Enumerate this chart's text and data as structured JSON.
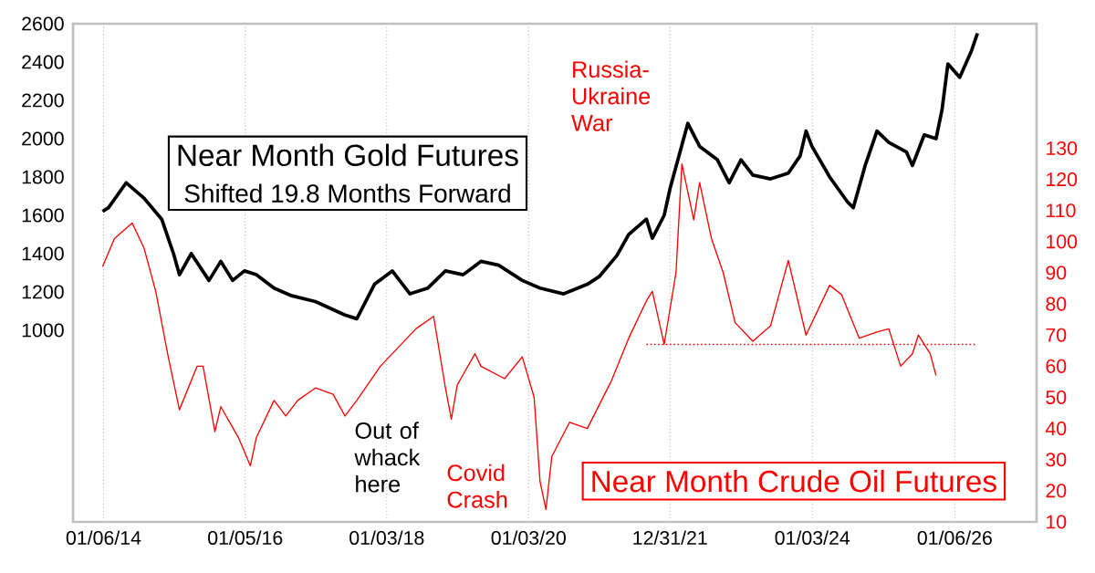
{
  "chart_data": {
    "type": "line",
    "xlim": [
      "2013-08-01",
      "2027-03-01"
    ],
    "xticks": [
      {
        "value": "2014-01-06",
        "label": "01/06/14"
      },
      {
        "value": "2016-01-05",
        "label": "01/05/16"
      },
      {
        "value": "2018-01-03",
        "label": "01/03/18"
      },
      {
        "value": "2020-01-03",
        "label": "01/03/20"
      },
      {
        "value": "2021-12-31",
        "label": "12/31/21"
      },
      {
        "value": "2024-01-03",
        "label": "01/03/24"
      },
      {
        "value": "2026-01-06",
        "label": "01/06/26"
      }
    ],
    "ylim": [
      0,
      2600
    ],
    "yticks": [
      1000,
      1200,
      1400,
      1600,
      1800,
      2000,
      2200,
      2400,
      2600
    ],
    "y2lim": [
      10,
      170
    ],
    "y2ticks": [
      10,
      20,
      30,
      40,
      50,
      60,
      70,
      80,
      90,
      100,
      110,
      120,
      130
    ],
    "grid": "x",
    "annotations": [
      "Shifted 19.8 Months Forward",
      "Russia-Ukraine War",
      "Out of whack here",
      "Covid Crash"
    ],
    "series": [
      {
        "name": "Near Month Gold Futures",
        "color": "#000000",
        "x": [
          "2014-01",
          "2014-02",
          "2014-05",
          "2014-08",
          "2014-11",
          "2015-01",
          "2015-02",
          "2015-04",
          "2015-07",
          "2015-09",
          "2015-11",
          "2016-01",
          "2016-03",
          "2016-06",
          "2016-09",
          "2017-01",
          "2017-06",
          "2017-08",
          "2017-11",
          "2018-02",
          "2018-05",
          "2018-08",
          "2018-11",
          "2019-02",
          "2019-05",
          "2019-08",
          "2019-12",
          "2020-03",
          "2020-07",
          "2020-11",
          "2021-01",
          "2021-04",
          "2021-06",
          "2021-09",
          "2021-10",
          "2021-12",
          "2022-01",
          "2022-04",
          "2022-06",
          "2022-09",
          "2022-11",
          "2023-01",
          "2023-03",
          "2023-06",
          "2023-09",
          "2023-11",
          "2023-12",
          "2024-01",
          "2024-04",
          "2024-07",
          "2024-08",
          "2024-10",
          "2024-12",
          "2025-02",
          "2025-05",
          "2025-06",
          "2025-08",
          "2025-10",
          "2025-11",
          "2025-12",
          "2026-02",
          "2026-04",
          "2026-05"
        ],
        "values": [
          1620,
          1640,
          1770,
          1690,
          1580,
          1400,
          1290,
          1400,
          1260,
          1360,
          1260,
          1310,
          1290,
          1220,
          1180,
          1150,
          1080,
          1060,
          1240,
          1310,
          1190,
          1220,
          1310,
          1290,
          1360,
          1340,
          1260,
          1220,
          1190,
          1240,
          1280,
          1390,
          1500,
          1580,
          1480,
          1600,
          1740,
          2080,
          1960,
          1890,
          1770,
          1890,
          1810,
          1790,
          1820,
          1910,
          2040,
          1960,
          1800,
          1670,
          1640,
          1860,
          2040,
          1980,
          1930,
          1860,
          2020,
          2000,
          2150,
          2390,
          2320,
          2460,
          2550
        ]
      },
      {
        "name": "Near Month Crude Oil Futures",
        "color": "#ff0000",
        "axis": "y2",
        "x": [
          "2014-01",
          "2014-03",
          "2014-06",
          "2014-08",
          "2014-10",
          "2014-12",
          "2015-02",
          "2015-05",
          "2015-06",
          "2015-08",
          "2015-09",
          "2015-12",
          "2016-02",
          "2016-03",
          "2016-06",
          "2016-08",
          "2016-10",
          "2017-01",
          "2017-04",
          "2017-06",
          "2017-08",
          "2017-12",
          "2018-03",
          "2018-06",
          "2018-09",
          "2018-11",
          "2018-12",
          "2019-01",
          "2019-04",
          "2019-05",
          "2019-09",
          "2019-12",
          "2020-02",
          "2020-03",
          "2020-04",
          "2020-05",
          "2020-08",
          "2020-11",
          "2021-03",
          "2021-06",
          "2021-09",
          "2021-10",
          "2021-12",
          "2022-02",
          "2022-03",
          "2022-05",
          "2022-06",
          "2022-08",
          "2022-10",
          "2022-11",
          "2022-12",
          "2023-03",
          "2023-06",
          "2023-09",
          "2023-12",
          "2024-04",
          "2024-06",
          "2024-09",
          "2024-12",
          "2025-02",
          "2025-04",
          "2025-06",
          "2025-07",
          "2025-09",
          "2025-10"
        ],
        "values": [
          92,
          101,
          106,
          98,
          84,
          64,
          46,
          60,
          60,
          39,
          47,
          37,
          28,
          37,
          49,
          44,
          49,
          53,
          51,
          44,
          49,
          60,
          66,
          72,
          76,
          53,
          43,
          54,
          64,
          60,
          56,
          63,
          50,
          23,
          14,
          31,
          42,
          40,
          55,
          69,
          81,
          84,
          67,
          90,
          125,
          107,
          119,
          101,
          90,
          82,
          74,
          68,
          73,
          94,
          70,
          86,
          83,
          69,
          71,
          72,
          60,
          64,
          70,
          64,
          57
        ]
      },
      {
        "color": "#ff0000",
        "axis": "y2",
        "line_style": "dotted",
        "x": [
          "2021-09",
          "2026-05"
        ],
        "values": [
          67,
          67
        ]
      }
    ]
  }
}
